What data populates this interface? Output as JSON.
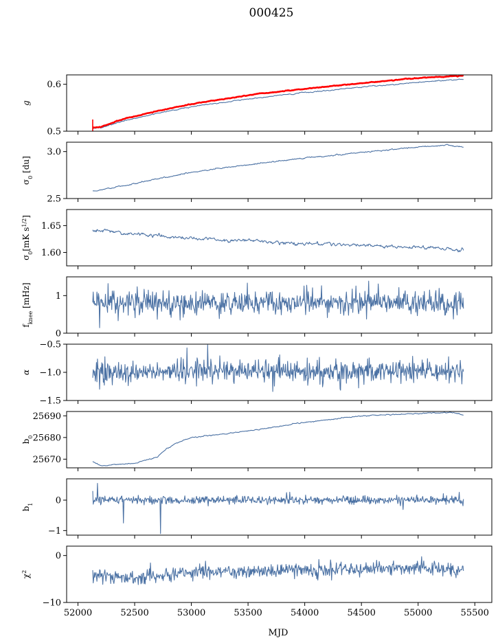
{
  "suptitle": "000425",
  "chart_data": {
    "type": "line",
    "xlabel": "MJD",
    "xlim": [
      51900,
      55650
    ],
    "xticks": [
      52000,
      52500,
      53000,
      53500,
      54000,
      54500,
      55000,
      55500
    ],
    "x_start": 52130,
    "x_end": 55400,
    "line_color": "#4c72a4",
    "highlight_color": "#ff0000",
    "panels": [
      {
        "ylabel_html": "g",
        "ylim": [
          0.5,
          0.62
        ],
        "yticks": [
          0.5,
          0.6
        ],
        "ytick_labels": [
          "0.5",
          "0.6"
        ],
        "series": [
          {
            "color": "#4c72a4",
            "points": [
              [
                52130,
                0.505
              ],
              [
                52200,
                0.507
              ],
              [
                52400,
                0.522
              ],
              [
                52700,
                0.538
              ],
              [
                53000,
                0.552
              ],
              [
                53300,
                0.562
              ],
              [
                53600,
                0.572
              ],
              [
                54000,
                0.582
              ],
              [
                54400,
                0.592
              ],
              [
                54800,
                0.6
              ],
              [
                55100,
                0.606
              ],
              [
                55400,
                0.611
              ]
            ],
            "noise": 0.0007
          },
          {
            "color": "#ff0000",
            "points": [
              [
                52130,
                0.508
              ],
              [
                52200,
                0.509
              ],
              [
                52400,
                0.526
              ],
              [
                52700,
                0.543
              ],
              [
                53000,
                0.558
              ],
              [
                53300,
                0.569
              ],
              [
                53600,
                0.58
              ],
              [
                54000,
                0.59
              ],
              [
                54400,
                0.6
              ],
              [
                54800,
                0.609
              ],
              [
                55100,
                0.615
              ],
              [
                55400,
                0.618
              ]
            ],
            "noise": 0.0005,
            "spike": [
              52130,
              0.495,
              0.525
            ],
            "thick": true
          }
        ]
      },
      {
        "ylabel_html": "&#963;<tspan baseline-shift='sub' font-size='8'>0</tspan> [du]",
        "ylim": [
          2.5,
          3.1
        ],
        "yticks": [
          2.5,
          3.0
        ],
        "ytick_labels": [
          "2.5",
          "3.0"
        ],
        "series": [
          {
            "color": "#4c72a4",
            "points": [
              [
                52150,
                2.58
              ],
              [
                52500,
                2.66
              ],
              [
                53000,
                2.78
              ],
              [
                53500,
                2.86
              ],
              [
                54000,
                2.93
              ],
              [
                54500,
                2.99
              ],
              [
                55000,
                3.05
              ],
              [
                55250,
                3.07
              ],
              [
                55400,
                3.05
              ]
            ],
            "noise": 0.004
          }
        ]
      },
      {
        "ylabel_html": "&#963;<tspan baseline-shift='sub' font-size='8'>0</tspan>[mK s<tspan baseline-shift='super' font-size='8'>1/2</tspan>]",
        "ylim": [
          1.575,
          1.68
        ],
        "yticks": [
          1.6,
          1.65
        ],
        "ytick_labels": [
          "1.60",
          "1.65"
        ],
        "series": [
          {
            "color": "#4c72a4",
            "points": [
              [
                52150,
                1.642
              ],
              [
                52500,
                1.635
              ],
              [
                53000,
                1.626
              ],
              [
                53500,
                1.622
              ],
              [
                54000,
                1.616
              ],
              [
                54500,
                1.613
              ],
              [
                55000,
                1.61
              ],
              [
                55400,
                1.603
              ]
            ],
            "noise": 0.002
          }
        ]
      },
      {
        "ylabel_html": "f<tspan baseline-shift='sub' font-size='8'>knee</tspan> [mHz]",
        "ylim": [
          0,
          1.5
        ],
        "yticks": [
          0,
          1
        ],
        "ytick_labels": [
          "0",
          "1"
        ],
        "series": [
          {
            "color": "#4c72a4",
            "points": [
              [
                52150,
                0.8
              ],
              [
                55400,
                0.8
              ]
            ],
            "noise": 0.15,
            "spiky": true
          }
        ]
      },
      {
        "ylabel_html": "&#945;",
        "ylim": [
          -1.5,
          -0.5
        ],
        "yticks": [
          -1.5,
          -1.0,
          -0.5
        ],
        "ytick_labels": [
          "−1.5",
          "−1.0",
          "−0.5"
        ],
        "series": [
          {
            "color": "#4c72a4",
            "points": [
              [
                52150,
                -1.0
              ],
              [
                55400,
                -0.98
              ]
            ],
            "noise": 0.09,
            "spiky": true
          }
        ]
      },
      {
        "ylabel_html": "b<tspan baseline-shift='sub' font-size='8'>0</tspan>",
        "ylim": [
          25666,
          25692
        ],
        "yticks": [
          25670,
          25680,
          25690
        ],
        "ytick_labels": [
          "25670",
          "25680",
          "25690"
        ],
        "series": [
          {
            "color": "#4c72a4",
            "points": [
              [
                52130,
                25669
              ],
              [
                52200,
                25667
              ],
              [
                52500,
                25668
              ],
              [
                52700,
                25671
              ],
              [
                52760,
                25674
              ],
              [
                52850,
                25677
              ],
              [
                53000,
                25680
              ],
              [
                53500,
                25683
              ],
              [
                54000,
                25687
              ],
              [
                54500,
                25690
              ],
              [
                55000,
                25691
              ],
              [
                55300,
                25691.5
              ],
              [
                55400,
                25690.5
              ]
            ],
            "noise": 0.15
          }
        ]
      },
      {
        "ylabel_html": "b<tspan baseline-shift='sub' font-size='8'>1</tspan>",
        "ylim": [
          -1.15,
          0.7
        ],
        "yticks": [
          -1,
          0
        ],
        "ytick_labels": [
          "−1",
          "0"
        ],
        "series": [
          {
            "color": "#4c72a4",
            "points": [
              [
                52130,
                0.0
              ],
              [
                55400,
                0.0
              ]
            ],
            "noise": 0.06,
            "spiky": true,
            "dips": [
              [
                52130,
                0.3
              ],
              [
                52170,
                0.55
              ],
              [
                52400,
                -0.75
              ],
              [
                52730,
                -1.1
              ]
            ]
          }
        ]
      },
      {
        "ylabel_html": "&#967;<tspan baseline-shift='super' font-size='8'>2</tspan>",
        "ylim": [
          -10,
          2
        ],
        "yticks": [
          -10,
          0
        ],
        "ytick_labels": [
          "−10",
          "0"
        ],
        "series": [
          {
            "color": "#4c72a4",
            "points": [
              [
                52130,
                -4.0
              ],
              [
                52500,
                -5.0
              ],
              [
                53000,
                -3.5
              ],
              [
                53500,
                -3.5
              ],
              [
                54000,
                -3.0
              ],
              [
                54500,
                -3.0
              ],
              [
                55000,
                -2.5
              ],
              [
                55400,
                -3.0
              ]
            ],
            "noise": 0.7,
            "spiky": true
          }
        ]
      }
    ]
  }
}
